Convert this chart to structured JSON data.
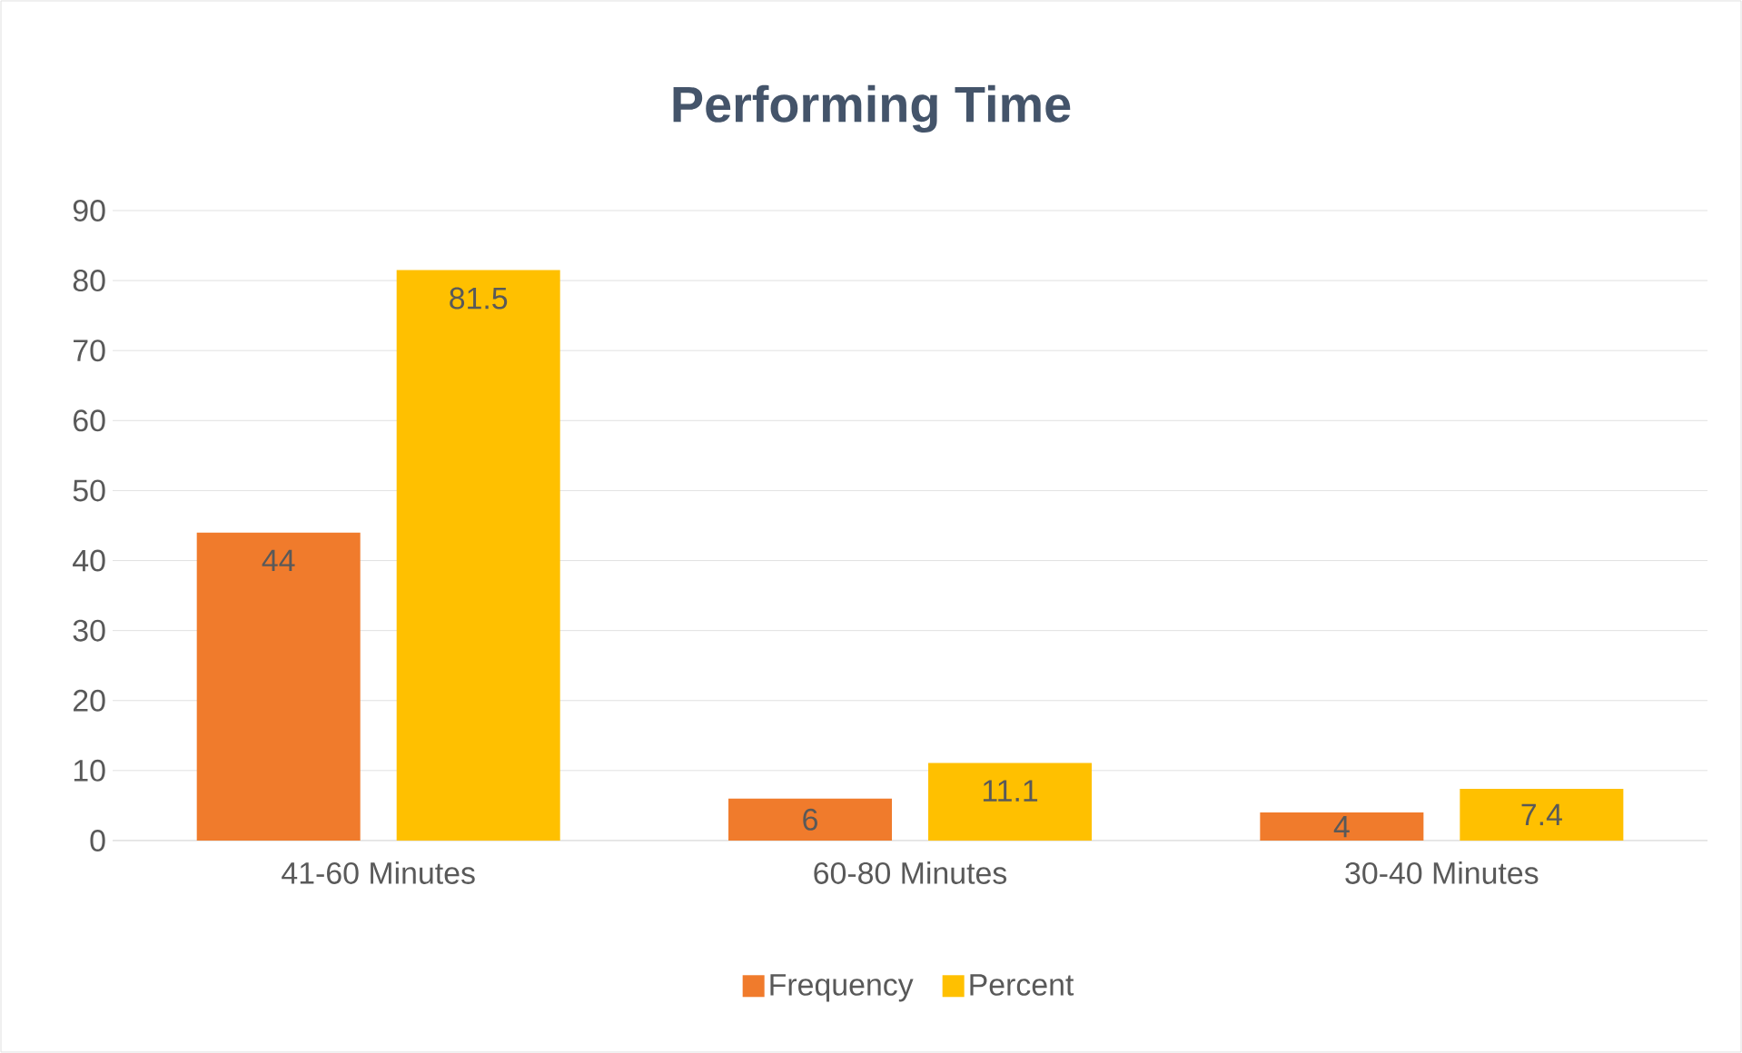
{
  "chart_data": {
    "type": "bar",
    "title": "Performing Time",
    "categories": [
      "41-60 Minutes",
      "60-80 Minutes",
      "30-40 Minutes"
    ],
    "series": [
      {
        "name": "Frequency",
        "color": "#f07b2c",
        "values": [
          44,
          6,
          4
        ]
      },
      {
        "name": "Percent",
        "color": "#ffc000",
        "values": [
          81.5,
          11.1,
          7.4
        ]
      }
    ],
    "ylim": [
      0,
      90
    ],
    "yticks": [
      0,
      10,
      20,
      30,
      40,
      50,
      60,
      70,
      80,
      90
    ],
    "grid": "y",
    "legend": "bottom",
    "data_labels": true
  }
}
